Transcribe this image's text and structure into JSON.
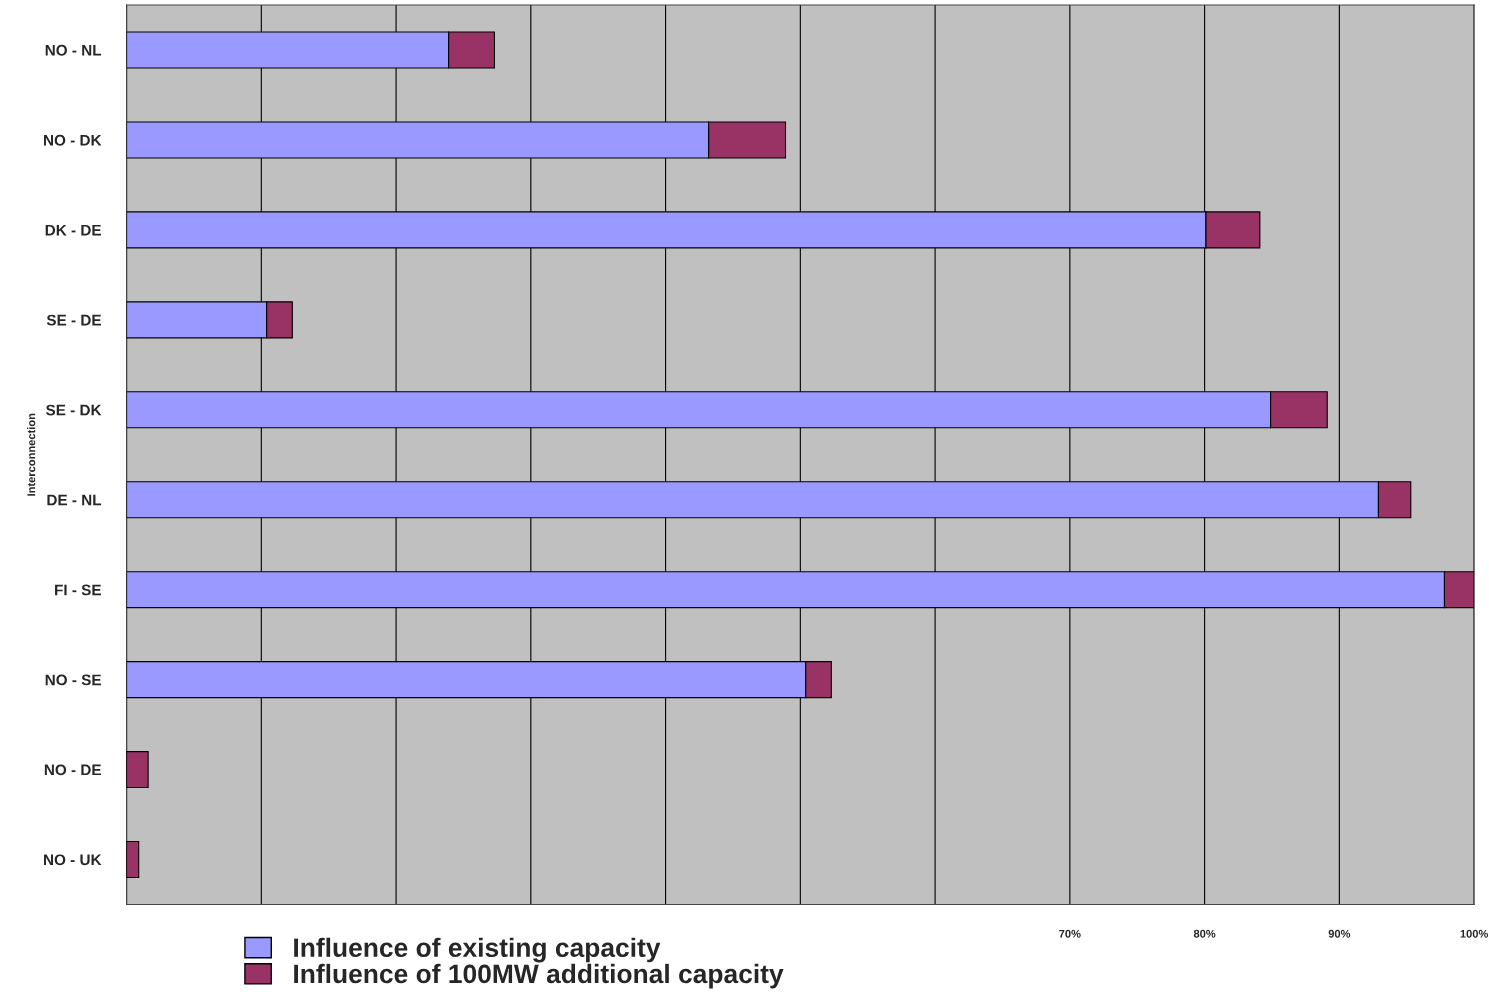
{
  "chart_data": {
    "type": "bar",
    "orientation": "horizontal",
    "stacked": true,
    "ylabel": "Interconnection",
    "categories": [
      "NO - NL",
      "NO - DK",
      "DK - DE",
      "SE - DE",
      "SE - DK",
      "DE - NL",
      "FI - SE",
      "NO - SE",
      "NO - DE",
      "NO - UK"
    ],
    "series": [
      {
        "name": "Influence of existing capacity",
        "color": "#9999ff",
        "values": [
          23.9,
          43.2,
          80.1,
          10.4,
          84.9,
          92.9,
          97.8,
          50.4,
          0,
          0
        ]
      },
      {
        "name": "Influence of 100MW additional capacity",
        "color": "#993366",
        "values": [
          3.4,
          5.7,
          4.0,
          1.9,
          4.2,
          2.4,
          2.2,
          1.9,
          1.6,
          0.9
        ]
      }
    ],
    "xlim": [
      0,
      100
    ],
    "xticks": [
      {
        "value": 0,
        "label": null
      },
      {
        "value": 10,
        "label": null
      },
      {
        "value": 20,
        "label": null
      },
      {
        "value": 30,
        "label": null
      },
      {
        "value": 40,
        "label": null
      },
      {
        "value": 50,
        "label": null
      },
      {
        "value": 60,
        "label": null
      },
      {
        "value": 70,
        "label": "70%"
      },
      {
        "value": 80,
        "label": "80%"
      },
      {
        "value": 90,
        "label": "90%"
      },
      {
        "value": 100,
        "label": "100%"
      }
    ],
    "grid": "x",
    "legend": "bottom left"
  }
}
